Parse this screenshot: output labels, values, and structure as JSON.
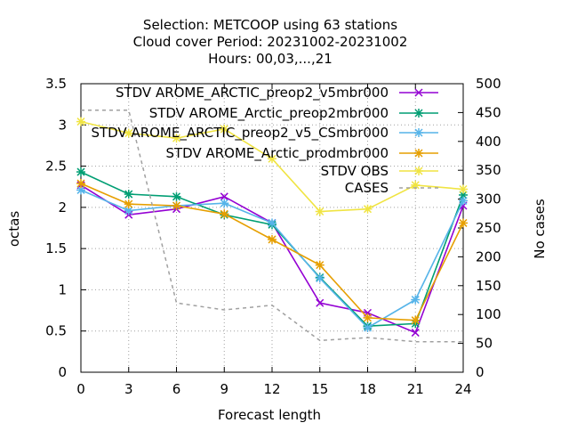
{
  "chart_data": {
    "type": "line",
    "title_lines": [
      "Selection: METCOOP using    63 stations",
      "Cloud cover   Period: 20231002-20231002",
      "Hours:  00,03,...,21"
    ],
    "xlabel": "Forecast length",
    "ylabel": "octas",
    "y2label": "No cases",
    "x": [
      0,
      3,
      6,
      9,
      12,
      15,
      18,
      21,
      24
    ],
    "xlim": [
      0,
      24
    ],
    "ylim": [
      0,
      3.5
    ],
    "y2lim": [
      0,
      500
    ],
    "x_ticks": [
      "0",
      "3",
      "6",
      "9",
      "12",
      "15",
      "18",
      "21",
      "24"
    ],
    "y_ticks": [
      "0",
      "0.5",
      "1",
      "1.5",
      "2",
      "2.5",
      "3",
      "3.5"
    ],
    "y2_ticks": [
      "0",
      "50",
      "100",
      "150",
      "200",
      "250",
      "300",
      "350",
      "400",
      "450",
      "500"
    ],
    "grid": true,
    "legend_position": "top-right",
    "series": [
      {
        "name": "STDV AROME_ARCTIC_preop2_v5mbr000",
        "color": "#9400d3",
        "marker": "x",
        "axis": "left",
        "values": [
          2.27,
          1.91,
          1.98,
          2.13,
          1.81,
          0.84,
          0.72,
          0.48,
          2.02
        ]
      },
      {
        "name": "STDV AROME_Arctic_preop2mbr000",
        "color": "#009e73",
        "marker": "star",
        "axis": "left",
        "values": [
          2.43,
          2.16,
          2.13,
          1.91,
          1.79,
          1.15,
          0.56,
          0.59,
          2.15
        ]
      },
      {
        "name": "STDV AROME_ARCTIC_preop2_v5_CSmbr000",
        "color": "#56b4e9",
        "marker": "star",
        "axis": "left",
        "values": [
          2.21,
          1.96,
          2.02,
          2.05,
          1.81,
          1.14,
          0.54,
          0.88,
          2.08
        ]
      },
      {
        "name": "STDV AROME_Arctic_prodmbr000",
        "color": "#e69f00",
        "marker": "star",
        "axis": "left",
        "values": [
          2.29,
          2.04,
          2.02,
          1.92,
          1.61,
          1.3,
          0.66,
          0.63,
          1.81
        ]
      },
      {
        "name": "STDV OBS",
        "color": "#f0e442",
        "marker": "star",
        "axis": "left",
        "values": [
          3.04,
          2.9,
          2.84,
          2.95,
          2.59,
          1.95,
          1.98,
          2.27,
          2.22
        ]
      },
      {
        "name": "CASES",
        "color": "#a0a0a0",
        "marker": "none",
        "dashed": true,
        "axis": "right",
        "values": [
          454,
          454,
          120,
          108,
          116,
          55,
          60,
          53,
          53
        ]
      }
    ]
  }
}
